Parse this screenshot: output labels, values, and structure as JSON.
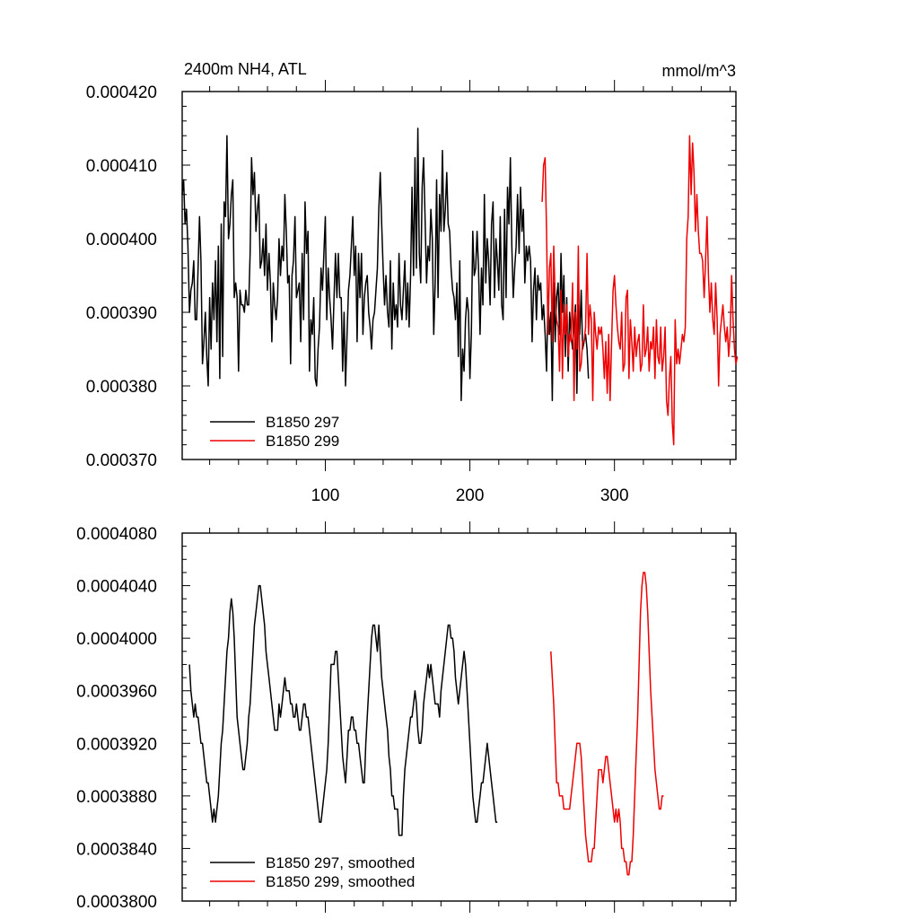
{
  "colors": {
    "series_1": "#000000",
    "series_2": "#ee0000",
    "axis": "#000000",
    "background": "#ffffff"
  },
  "chart_data": [
    {
      "type": "line",
      "title": "2400m NH4, ATL",
      "units": "mmol/m^3",
      "xlabel": "",
      "ylabel": "",
      "xlim": [
        1,
        384
      ],
      "ylim": [
        0.00037,
        0.00042
      ],
      "x_ticks": [
        100,
        200,
        300
      ],
      "x_tick_labels": [
        "100",
        "200",
        "300"
      ],
      "y_ticks": [
        0.00037,
        0.00038,
        0.00039,
        0.0004,
        0.00041,
        0.00042
      ],
      "y_tick_labels": [
        "0.000370",
        "0.000380",
        "0.000390",
        "0.000400",
        "0.000410",
        "0.000420"
      ],
      "grid": false,
      "legend_position": "bottom-left",
      "series": [
        {
          "name": "B1850 297",
          "color": "#000000",
          "x_start": 1,
          "values": [
            0.000406,
            0.000408,
            0.000402,
            0.000404,
            0.000399,
            0.00039,
            0.000393,
            0.000394,
            0.000397,
            0.000389,
            0.000389,
            0.000396,
            0.000403,
            0.000397,
            0.000383,
            0.000386,
            0.00039,
            0.000384,
            0.00038,
            0.000392,
            0.000385,
            0.000394,
            0.000389,
            0.000397,
            0.000386,
            0.000399,
            0.000381,
            0.000402,
            0.000384,
            0.000405,
            0.000403,
            0.000414,
            0.0004,
            0.000402,
            0.000406,
            0.000408,
            0.000392,
            0.000394,
            0.000392,
            0.000382,
            0.000393,
            0.000391,
            0.000391,
            0.00039,
            0.000393,
            0.000391,
            0.000391,
            0.000398,
            0.000411,
            0.000406,
            0.000409,
            0.000401,
            0.000404,
            0.000406,
            0.000396,
            0.000397,
            0.0004,
            0.000395,
            0.000402,
            0.000393,
            0.000398,
            0.000394,
            0.000386,
            0.000394,
            0.000391,
            0.000389,
            0.000392,
            0.0004,
            0.000395,
            0.000399,
            0.000397,
            0.000406,
            0.000401,
            0.000394,
            0.000395,
            0.000383,
            0.000395,
            0.000397,
            0.000403,
            0.000392,
            0.000393,
            0.000394,
            0.000386,
            0.000398,
            0.000389,
            0.000405,
            0.000398,
            0.000401,
            0.000382,
            0.000389,
            0.000387,
            0.000392,
            0.000381,
            0.00038,
            0.000385,
            0.000388,
            0.000396,
            0.000393,
            0.000398,
            0.000403,
            0.000389,
            0.000396,
            0.000392,
            0.000389,
            0.000385,
            0.000392,
            0.000398,
            0.000392,
            0.000398,
            0.000392,
            0.000392,
            0.000382,
            0.00039,
            0.00038,
            0.000387,
            0.000393,
            0.000395,
            0.000399,
            0.000403,
            0.000395,
            0.000399,
            0.000386,
            0.000398,
            0.000392,
            0.000398,
            0.000387,
            0.000392,
            0.000394,
            0.000395,
            0.00039,
            0.000388,
            0.000385,
            0.000389,
            0.00039,
            0.000393,
            0.000396,
            0.000404,
            0.000409,
            0.000402,
            0.000396,
            0.000391,
            0.000395,
            0.00039,
            0.000388,
            0.000397,
            0.000385,
            0.000394,
            0.000389,
            0.000391,
            0.000388,
            0.000398,
            0.000391,
            0.000389,
            0.000393,
            0.000397,
            0.000389,
            0.000394,
            0.000388,
            0.000395,
            0.000407,
            0.000395,
            0.000411,
            0.000396,
            0.000415,
            0.000398,
            0.000394,
            0.000407,
            0.000411,
            0.000403,
            0.000394,
            0.000399,
            0.000397,
            0.000404,
            0.0004,
            0.000387,
            0.000394,
            0.000408,
            0.000392,
            0.000406,
            0.000401,
            0.000412,
            0.000401,
            0.000404,
            0.000409,
            0.000402,
            0.000401,
            0.000396,
            0.000393,
            0.000392,
            0.000389,
            0.000394,
            0.000384,
            0.000397,
            0.000378,
            0.000385,
            0.000382,
            0.000389,
            0.000392,
            0.00039,
            0.000381,
            0.000387,
            0.000401,
            0.000395,
            0.000396,
            0.000401,
            0.000396,
            0.000387,
            0.000396,
            0.000391,
            0.000406,
            0.000394,
            0.0004,
            0.000397,
            0.000391,
            0.000402,
            0.000405,
            0.000392,
            0.0004,
            0.000397,
            0.000393,
            0.000403,
            0.000391,
            0.000389,
            0.000404,
            0.000392,
            0.000407,
            0.000402,
            0.000411,
            0.000399,
            0.000392,
            0.000396,
            0.000399,
            0.000406,
            0.000398,
            0.000407,
            0.000401,
            0.000404,
            0.000394,
            0.000399,
            0.000397,
            0.000399,
            0.000397,
            0.000386,
            0.000393,
            0.000396,
            0.000389,
            0.000395,
            0.000393,
            0.000394,
            0.000389,
            0.000391,
            0.000387,
            0.000382,
            0.000392,
            0.000387,
            0.00039,
            0.000378,
            0.000394,
            0.000386,
            0.000392,
            0.000394,
            0.000387,
            0.000398,
            0.00039,
            0.000395,
            0.000384,
            0.000392,
            0.000382,
            0.00039,
            0.000387,
            0.000385,
            0.000388,
            0.000391,
            0.000379,
            0.000391,
            0.000387,
            0.000393,
            0.000385,
            0.000386,
            0.000387,
            0.000385,
            0.000381
          ]
        },
        {
          "name": "B1850 299",
          "color": "#ee0000",
          "x_start": 250,
          "values": [
            0.000405,
            0.00041,
            0.000411,
            0.000401,
            0.000387,
            0.000396,
            0.000398,
            0.000386,
            0.000399,
            0.000392,
            0.000389,
            0.000388,
            0.000382,
            0.000393,
            0.000381,
            0.000391,
            0.000387,
            0.000391,
            0.000384,
            0.000387,
            0.000386,
            0.000394,
            0.000378,
            0.00039,
            0.000385,
            0.000399,
            0.000382,
            0.000383,
            0.000386,
            0.000386,
            0.000388,
            0.000398,
            0.000387,
            0.000391,
            0.000389,
            0.000378,
            0.00039,
            0.000387,
            0.000385,
            0.000388,
            0.000387,
            0.000388,
            0.000385,
            0.000381,
            0.000386,
            0.000379,
            0.000387,
            0.000378,
            0.000386,
            0.000393,
            0.000395,
            0.000391,
            0.000388,
            0.000386,
            0.000385,
            0.00039,
            0.000382,
            0.000383,
            0.000392,
            0.000393,
            0.000381,
            0.000389,
            0.000386,
            0.000382,
            0.000388,
            0.000384,
            0.000386,
            0.000387,
            0.000382,
            0.000383,
            0.000391,
            0.000384,
            0.000385,
            0.000388,
            0.000382,
            0.000386,
            0.000385,
            0.000388,
            0.000381,
            0.000389,
            0.000384,
            0.000383,
            0.000388,
            0.000382,
            0.000384,
            0.000388,
            0.000378,
            0.000376,
            0.000381,
            0.000384,
            0.000375,
            0.000372,
            0.000389,
            0.000383,
            0.000385,
            0.000383,
            0.000385,
            0.000387,
            0.000386,
            0.000388,
            0.0004,
            0.000403,
            0.000414,
            0.000406,
            0.000413,
            0.000409,
            0.000401,
            0.000406,
            0.000401,
            0.000398,
            0.000398,
            0.000397,
            0.000392,
            0.000397,
            0.000403,
            0.000395,
            0.00039,
            0.000394,
            0.000389,
            0.000387,
            0.000394,
            0.000389,
            0.00038,
            0.000387,
            0.000389,
            0.000391,
            0.000388,
            0.000386,
            0.000388,
            0.000384,
            0.000387,
            0.000395,
            0.000389,
            0.000385,
            0.000383,
            0.000384
          ]
        }
      ]
    },
    {
      "type": "line",
      "title": "",
      "xlabel": "",
      "ylabel": "",
      "xlim": [
        1,
        384
      ],
      "ylim": [
        0.00038,
        0.000408
      ],
      "x_ticks": [
        100,
        200,
        300
      ],
      "x_tick_labels": [],
      "y_ticks": [
        0.00038,
        0.000384,
        0.000388,
        0.000392,
        0.000396,
        0.0004,
        0.000404,
        0.000408
      ],
      "y_tick_labels": [
        "0.0003800",
        "0.0003840",
        "0.0003880",
        "0.0003920",
        "0.0003960",
        "0.0004000",
        "0.0004040",
        "0.0004080"
      ],
      "grid": false,
      "legend_position": "bottom-left",
      "series": [
        {
          "name": "B1850 297, smoothed",
          "color": "#000000",
          "x_start": 6,
          "values": [
            0.000398,
            0.000396,
            0.000395,
            0.000394,
            0.000395,
            0.000394,
            0.000394,
            0.000393,
            0.000392,
            0.000392,
            0.000391,
            0.00039,
            0.000389,
            0.000389,
            0.000388,
            0.000387,
            0.000386,
            0.000387,
            0.000386,
            0.000387,
            0.000388,
            0.00039,
            0.000392,
            0.000393,
            0.000395,
            0.000397,
            0.000399,
            0.0004,
            0.000402,
            0.000403,
            0.000402,
            0.0004,
            0.000397,
            0.000394,
            0.000393,
            0.000392,
            0.000391,
            0.00039,
            0.00039,
            0.000391,
            0.000392,
            0.000394,
            0.000395,
            0.000397,
            0.000399,
            0.000401,
            0.000402,
            0.000403,
            0.000404,
            0.000404,
            0.000403,
            0.000402,
            0.000401,
            0.000399,
            0.000398,
            0.000397,
            0.000396,
            0.000395,
            0.000394,
            0.000393,
            0.000393,
            0.000393,
            0.000395,
            0.000394,
            0.000395,
            0.000396,
            0.000397,
            0.000396,
            0.000396,
            0.000396,
            0.000395,
            0.000395,
            0.000394,
            0.000394,
            0.000395,
            0.000394,
            0.000393,
            0.000393,
            0.000394,
            0.000395,
            0.000395,
            0.000394,
            0.000394,
            0.000393,
            0.000392,
            0.000391,
            0.00039,
            0.000389,
            0.000388,
            0.000387,
            0.000386,
            0.000386,
            0.000387,
            0.000388,
            0.000389,
            0.00039,
            0.000392,
            0.000395,
            0.000398,
            0.000398,
            0.000398,
            0.000399,
            0.000399,
            0.000397,
            0.000395,
            0.000393,
            0.000391,
            0.00039,
            0.000389,
            0.000391,
            0.000393,
            0.000393,
            0.000394,
            0.000394,
            0.000393,
            0.000393,
            0.000392,
            0.000392,
            0.000391,
            0.00039,
            0.000389,
            0.000389,
            0.000392,
            0.000394,
            0.000396,
            0.000398,
            0.0004,
            0.000401,
            0.000401,
            0.0004,
            0.000399,
            0.000401,
            0.000399,
            0.000397,
            0.000396,
            0.000395,
            0.000394,
            0.000393,
            0.000391,
            0.00039,
            0.000388,
            0.000388,
            0.000387,
            0.000387,
            0.000387,
            0.000385,
            0.000385,
            0.000385,
            0.000388,
            0.00039,
            0.000391,
            0.000392,
            0.000393,
            0.000394,
            0.000394,
            0.000395,
            0.000396,
            0.000395,
            0.000393,
            0.000392,
            0.000392,
            0.000393,
            0.000395,
            0.000396,
            0.000397,
            0.000398,
            0.000397,
            0.000398,
            0.000397,
            0.000396,
            0.000395,
            0.000395,
            0.000395,
            0.000394,
            0.000396,
            0.000397,
            0.000398,
            0.000399,
            0.0004,
            0.000401,
            0.000401,
            0.0004,
            0.0004,
            0.000399,
            0.000397,
            0.000396,
            0.000395,
            0.000396,
            0.000397,
            0.000398,
            0.000399,
            0.000398,
            0.000396,
            0.000394,
            0.000392,
            0.00039,
            0.000388,
            0.000387,
            0.000386,
            0.000386,
            0.000387,
            0.000388,
            0.000389,
            0.000389,
            0.00039,
            0.000391,
            0.000392,
            0.000391,
            0.00039,
            0.000389,
            0.000388,
            0.000387,
            0.000386,
            0.000386
          ]
        },
        {
          "name": "B1850 299, smoothed",
          "color": "#ee0000",
          "x_start": 256,
          "values": [
            0.000399,
            0.000397,
            0.000395,
            0.000392,
            0.000389,
            0.000389,
            0.000388,
            0.000388,
            0.000388,
            0.000387,
            0.000387,
            0.000387,
            0.000387,
            0.000387,
            0.000388,
            0.000389,
            0.00039,
            0.000391,
            0.000392,
            0.000392,
            0.000392,
            0.000391,
            0.000389,
            0.000387,
            0.000385,
            0.000384,
            0.000383,
            0.000383,
            0.000383,
            0.000384,
            0.000384,
            0.000386,
            0.000388,
            0.00039,
            0.00039,
            0.00039,
            0.000389,
            0.00039,
            0.000391,
            0.000391,
            0.00039,
            0.000389,
            0.000388,
            0.000387,
            0.000386,
            0.000387,
            0.000386,
            0.000387,
            0.000386,
            0.000384,
            0.000384,
            0.000383,
            0.000383,
            0.000382,
            0.000382,
            0.000383,
            0.000383,
            0.000385,
            0.000388,
            0.000391,
            0.000394,
            0.000398,
            0.000402,
            0.000404,
            0.000405,
            0.000405,
            0.000404,
            0.000402,
            0.000399,
            0.000396,
            0.000394,
            0.000392,
            0.00039,
            0.000389,
            0.000388,
            0.000387,
            0.000387,
            0.000388,
            0.000388
          ]
        }
      ]
    }
  ]
}
